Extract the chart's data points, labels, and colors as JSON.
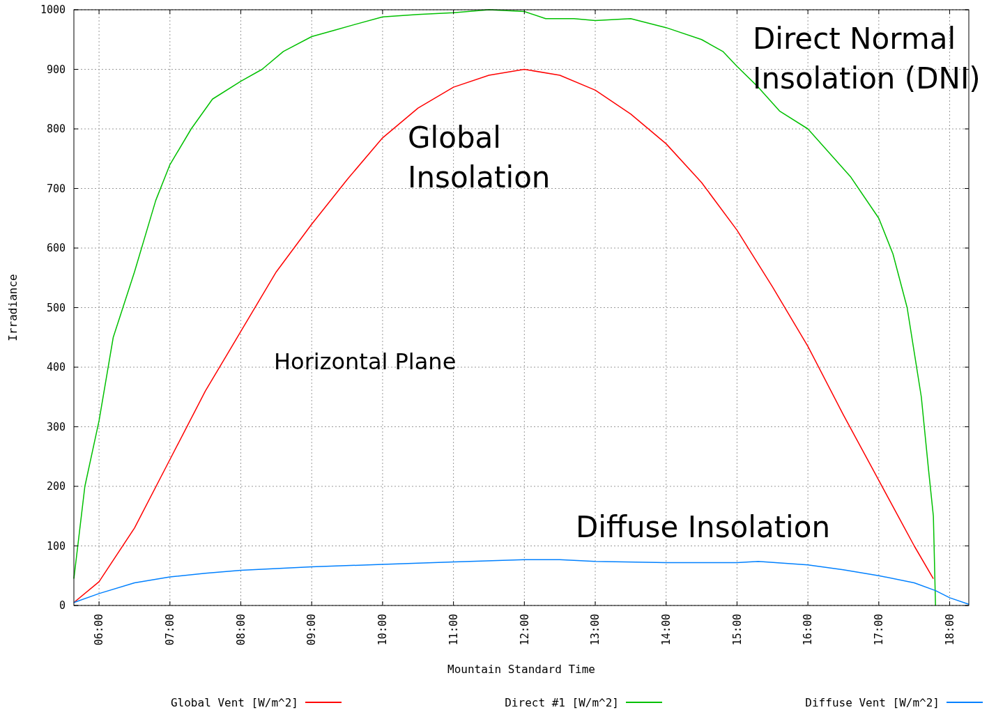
{
  "chart_data": {
    "type": "line",
    "xlabel": "Mountain Standard Time",
    "ylabel": "Irradiance",
    "xlim": [
      5.645,
      18.27
    ],
    "ylim": [
      0,
      1000
    ],
    "xticks": [
      {
        "value": 6,
        "label": "06:00"
      },
      {
        "value": 7,
        "label": "07:00"
      },
      {
        "value": 8,
        "label": "08:00"
      },
      {
        "value": 9,
        "label": "09:00"
      },
      {
        "value": 10,
        "label": "10:00"
      },
      {
        "value": 11,
        "label": "11:00"
      },
      {
        "value": 12,
        "label": "12:00"
      },
      {
        "value": 13,
        "label": "13:00"
      },
      {
        "value": 14,
        "label": "14:00"
      },
      {
        "value": 15,
        "label": "15:00"
      },
      {
        "value": 16,
        "label": "16:00"
      },
      {
        "value": 17,
        "label": "17:00"
      },
      {
        "value": 18,
        "label": "18:00"
      }
    ],
    "yticks": [
      0,
      100,
      200,
      300,
      400,
      500,
      600,
      700,
      800,
      900,
      1000
    ],
    "grid": true,
    "legend": "bottom",
    "marker": "none",
    "line_style": "solid",
    "series": [
      {
        "name": "Global Vent [W/m^2]",
        "color": "#ff0000",
        "x": [
          5.645,
          6.0,
          6.5,
          7.0,
          7.5,
          8.0,
          8.5,
          9.0,
          9.5,
          10.0,
          10.5,
          11.0,
          11.5,
          12.0,
          12.5,
          13.0,
          13.5,
          14.0,
          14.5,
          15.0,
          15.5,
          16.0,
          16.5,
          17.0,
          17.5,
          17.77
        ],
        "values": [
          5,
          40,
          130,
          245,
          360,
          460,
          560,
          640,
          715,
          785,
          835,
          870,
          890,
          900,
          890,
          865,
          825,
          775,
          710,
          630,
          535,
          435,
          320,
          210,
          100,
          45
        ]
      },
      {
        "name": "Direct #1 [W/m^2]",
        "color": "#00c000",
        "x": [
          5.645,
          5.8,
          6.0,
          6.2,
          6.5,
          6.8,
          7.0,
          7.3,
          7.6,
          8.0,
          8.3,
          8.6,
          9.0,
          9.3,
          9.6,
          10.0,
          10.5,
          11.0,
          11.5,
          12.0,
          12.3,
          12.7,
          13.0,
          13.5,
          14.0,
          14.5,
          14.8,
          15.0,
          15.3,
          15.6,
          16.0,
          16.3,
          16.6,
          17.0,
          17.2,
          17.4,
          17.6,
          17.7,
          17.77,
          17.8
        ],
        "values": [
          45,
          200,
          310,
          450,
          560,
          680,
          740,
          800,
          850,
          880,
          900,
          930,
          955,
          965,
          975,
          988,
          992,
          995,
          1000,
          997,
          985,
          985,
          982,
          985,
          970,
          950,
          930,
          905,
          870,
          830,
          800,
          760,
          720,
          650,
          590,
          500,
          350,
          230,
          150,
          0
        ]
      },
      {
        "name": "Diffuse Vent [W/m^2]",
        "color": "#0080ff",
        "x": [
          5.645,
          6.0,
          6.5,
          7.0,
          7.5,
          8.0,
          9.0,
          10.0,
          11.0,
          12.0,
          12.5,
          13.0,
          14.0,
          15.0,
          15.3,
          16.0,
          16.5,
          17.0,
          17.5,
          17.8,
          18.0,
          18.27
        ],
        "values": [
          5,
          20,
          38,
          48,
          54,
          59,
          65,
          69,
          73,
          77,
          77,
          74,
          72,
          72,
          74,
          68,
          60,
          50,
          38,
          25,
          13,
          2
        ]
      }
    ],
    "annotations": [
      "Direct Normal\nInsolation (DNI)",
      "Global\nInsolation",
      "Horizontal Plane",
      "Diffuse Insolation"
    ]
  }
}
